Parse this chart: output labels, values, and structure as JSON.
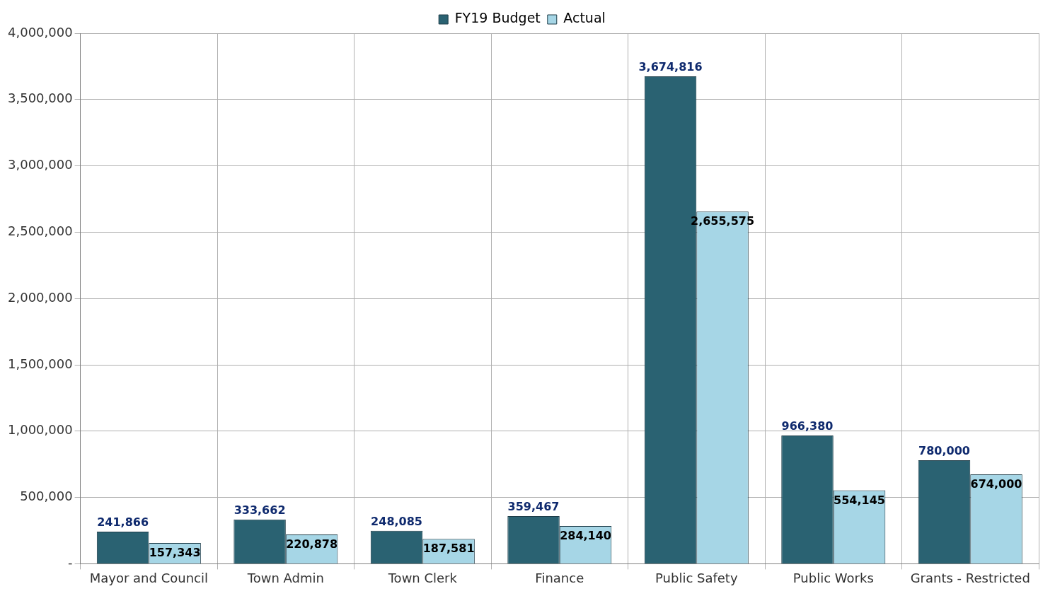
{
  "chart_data": {
    "type": "bar",
    "categories": [
      "Mayor and Council",
      "Town Admin",
      "Town Clerk",
      "Finance",
      "Public Safety",
      "Public Works",
      "Grants - Restricted"
    ],
    "series": [
      {
        "name": "FY19 Budget",
        "color": "#2a6272",
        "values": [
          241866,
          333662,
          248085,
          359467,
          3674816,
          966380,
          780000
        ],
        "value_labels": [
          "241,866",
          "333,662",
          "248,085",
          "359,467",
          "3,674,816",
          "966,380",
          "780,000"
        ]
      },
      {
        "name": "Actual",
        "color": "#a6d6e6",
        "values": [
          157343,
          220878,
          187581,
          284140,
          2655575,
          554145,
          674000
        ],
        "value_labels": [
          "157,343",
          "220,878",
          "187,581",
          "284,140",
          "2,655,575",
          "554,145",
          "674,000"
        ]
      }
    ],
    "ylim": [
      0,
      4000000
    ],
    "yticks": [
      {
        "value": 0,
        "label": "-"
      },
      {
        "value": 500000,
        "label": "500,000"
      },
      {
        "value": 1000000,
        "label": "1,000,000"
      },
      {
        "value": 1500000,
        "label": "1,500,000"
      },
      {
        "value": 2000000,
        "label": "2,000,000"
      },
      {
        "value": 2500000,
        "label": "2,500,000"
      },
      {
        "value": 3000000,
        "label": "3,000,000"
      },
      {
        "value": 3500000,
        "label": "3,500,000"
      },
      {
        "value": 4000000,
        "label": "4,000,000"
      }
    ],
    "grid": true,
    "legend": "top"
  }
}
